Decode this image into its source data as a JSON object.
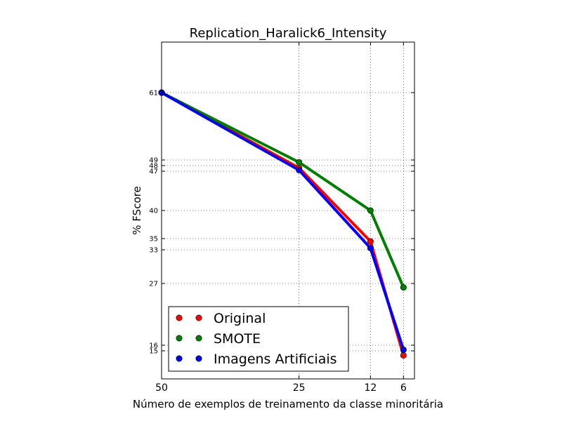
{
  "chart_data": {
    "type": "line",
    "title": "Replication_Haralick6_Intensity",
    "xlabel": "Número de exemplos de treinamento da classe minoritária",
    "ylabel": "% FScore",
    "x": [
      50,
      25,
      12,
      6
    ],
    "x_tick_labels": [
      "50",
      "25",
      "12",
      "6"
    ],
    "y_ticks": [
      15,
      16,
      27,
      33,
      35,
      40,
      47,
      48,
      49,
      61
    ],
    "y_tick_labels": [
      "15",
      "16",
      "27",
      "33",
      "35",
      "40",
      "47",
      "48",
      "49",
      "61"
    ],
    "xlim": [
      50,
      4
    ],
    "ylim": [
      10,
      70
    ],
    "grid": true,
    "legend_position": "lower-left",
    "series": [
      {
        "name": "Original",
        "color": "#ff0000",
        "values": [
          61,
          47.6,
          34.5,
          14.2
        ]
      },
      {
        "name": "SMOTE",
        "color": "#008000",
        "values": [
          61,
          48.6,
          40,
          26.3
        ]
      },
      {
        "name": "Imagens Artificiais",
        "color": "#0000ff",
        "values": [
          61,
          47.2,
          33.3,
          15.2
        ]
      }
    ]
  }
}
